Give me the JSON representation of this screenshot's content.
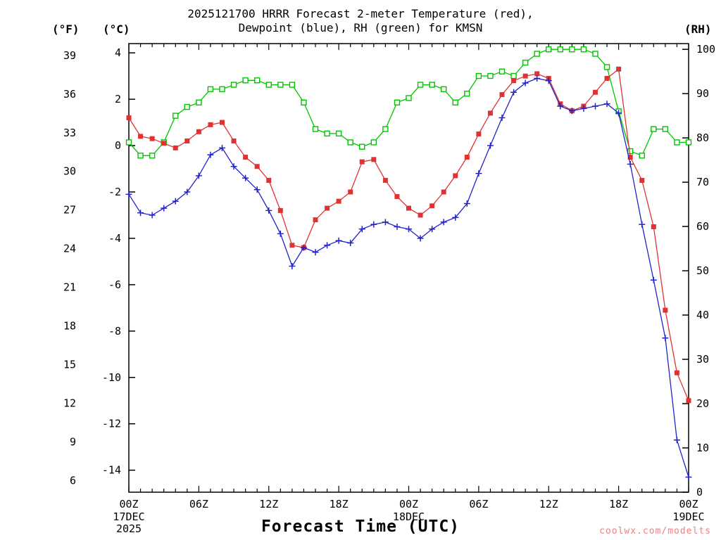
{
  "title_line1": "2025121700 HRRR Forecast 2-meter Temperature (red),",
  "title_line2": "Dewpoint (blue), RH (green) for KMSN",
  "axis_headers": {
    "f": "(°F)",
    "c": "(°C)",
    "rh": "(RH)"
  },
  "xlabel": "Forecast Time (UTC)",
  "watermark": "coolwx.com/modelts",
  "chart_data": {
    "type": "line",
    "station": "KMSN",
    "model_run": "2025121700 HRRR",
    "x_unit": "forecast hour (hourly, 0-48)",
    "x_ticks": [
      {
        "h": 0,
        "label": "00Z",
        "date": "17DEC",
        "year": "2025"
      },
      {
        "h": 6,
        "label": "06Z"
      },
      {
        "h": 12,
        "label": "12Z"
      },
      {
        "h": 18,
        "label": "18Z"
      },
      {
        "h": 24,
        "label": "00Z",
        "date": "18DEC"
      },
      {
        "h": 30,
        "label": "06Z"
      },
      {
        "h": 36,
        "label": "12Z"
      },
      {
        "h": 42,
        "label": "18Z"
      },
      {
        "h": 48,
        "label": "00Z",
        "date": "19DEC"
      }
    ],
    "c_axis": {
      "min": -14.95,
      "max": 4.4,
      "ticks": [
        4,
        2,
        0,
        -2,
        -4,
        -6,
        -8,
        -10,
        -12,
        -14
      ]
    },
    "f_axis": {
      "ticks": [
        39,
        36,
        33,
        30,
        27,
        24,
        21,
        18,
        15,
        12,
        9,
        6
      ]
    },
    "rh_axis": {
      "min": 0,
      "max": 101.3,
      "ticks": [
        0,
        10,
        20,
        30,
        40,
        50,
        60,
        70,
        80,
        90,
        100
      ]
    },
    "series": [
      {
        "name": "Relative Humidity",
        "data_name": "rh-series",
        "color": "#00c400",
        "marker": "square-open",
        "axis": "rh",
        "values": [
          79,
          76,
          76,
          79,
          85,
          87,
          88,
          91,
          91,
          92,
          93,
          93,
          92,
          92,
          92,
          88,
          82,
          81,
          81,
          79,
          78,
          79,
          82,
          88,
          89,
          92,
          92,
          91,
          88,
          90,
          94,
          94,
          95,
          94,
          97,
          99,
          100,
          100,
          100,
          100,
          99,
          96,
          86,
          77,
          76,
          82,
          82,
          79,
          79
        ]
      },
      {
        "name": "2-meter Temperature",
        "data_name": "temperature-series",
        "color": "#e03232",
        "marker": "square-filled",
        "axis": "c",
        "values": [
          1.2,
          0.4,
          0.3,
          0.1,
          -0.1,
          0.2,
          0.6,
          0.9,
          1.0,
          0.2,
          -0.5,
          -0.9,
          -1.5,
          -2.8,
          -4.3,
          -4.4,
          -3.2,
          -2.7,
          -2.4,
          -2.0,
          -0.7,
          -0.6,
          -1.5,
          -2.2,
          -2.7,
          -3.0,
          -2.6,
          -2.0,
          -1.3,
          -0.5,
          0.5,
          1.4,
          2.2,
          2.8,
          3.0,
          3.1,
          2.9,
          1.8,
          1.5,
          1.7,
          2.3,
          2.9,
          3.3,
          -0.5,
          -1.5,
          -3.5,
          -7.1,
          -9.8,
          -11.0
        ]
      },
      {
        "name": "2-meter Dewpoint",
        "data_name": "dewpoint-series",
        "color": "#2222cc",
        "marker": "plus",
        "axis": "c",
        "values": [
          -2.1,
          -2.9,
          -3.0,
          -2.7,
          -2.4,
          -2.0,
          -1.3,
          -0.4,
          -0.1,
          -0.9,
          -1.4,
          -1.9,
          -2.8,
          -3.8,
          -5.2,
          -4.4,
          -4.6,
          -4.3,
          -4.1,
          -4.2,
          -3.6,
          -3.4,
          -3.3,
          -3.5,
          -3.6,
          -4.0,
          -3.6,
          -3.3,
          -3.1,
          -2.5,
          -1.2,
          0.0,
          1.2,
          2.3,
          2.7,
          2.9,
          2.8,
          1.7,
          1.5,
          1.6,
          1.7,
          1.8,
          1.4,
          -0.8,
          -3.4,
          -5.8,
          -8.3,
          -12.7,
          -14.3
        ]
      }
    ]
  }
}
